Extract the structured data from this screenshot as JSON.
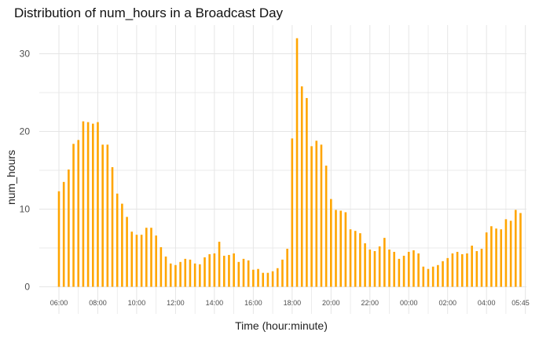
{
  "chart_data": {
    "type": "bar",
    "title": "Distribution of num_hours in a Broadcast Day",
    "xlabel": "Time (hour:minute)",
    "ylabel": "num_hours",
    "ylim": [
      0,
      33
    ],
    "yticks": [
      0,
      10,
      20,
      30
    ],
    "grid": true,
    "bar_color": "#FFA500",
    "grid_color": "#e5e5e5",
    "x_tick_labels": [
      "06:00",
      "08:00",
      "10:00",
      "12:00",
      "14:00",
      "16:00",
      "18:00",
      "20:00",
      "22:00",
      "00:00",
      "02:00",
      "04:00",
      "05:45"
    ],
    "categories": [
      "06:00",
      "06:15",
      "06:30",
      "06:45",
      "07:00",
      "07:15",
      "07:30",
      "07:45",
      "08:00",
      "08:15",
      "08:30",
      "08:45",
      "09:00",
      "09:15",
      "09:30",
      "09:45",
      "10:00",
      "10:15",
      "10:30",
      "10:45",
      "11:00",
      "11:15",
      "11:30",
      "11:45",
      "12:00",
      "12:15",
      "12:30",
      "12:45",
      "13:00",
      "13:15",
      "13:30",
      "13:45",
      "14:00",
      "14:15",
      "14:30",
      "14:45",
      "15:00",
      "15:15",
      "15:30",
      "15:45",
      "16:00",
      "16:15",
      "16:30",
      "16:45",
      "17:00",
      "17:15",
      "17:30",
      "17:45",
      "18:00",
      "18:15",
      "18:30",
      "18:45",
      "19:00",
      "19:15",
      "19:30",
      "19:45",
      "20:00",
      "20:15",
      "20:30",
      "20:45",
      "21:00",
      "21:15",
      "21:30",
      "21:45",
      "22:00",
      "22:15",
      "22:30",
      "22:45",
      "23:00",
      "23:15",
      "23:30",
      "23:45",
      "00:00",
      "00:15",
      "00:30",
      "00:45",
      "01:00",
      "01:15",
      "01:30",
      "01:45",
      "02:00",
      "02:15",
      "02:30",
      "02:45",
      "03:00",
      "03:15",
      "03:30",
      "03:45",
      "04:00",
      "04:15",
      "04:30",
      "04:45",
      "05:00",
      "05:15",
      "05:30",
      "05:45"
    ],
    "values": [
      12.3,
      13.5,
      15.1,
      18.4,
      18.9,
      21.3,
      21.2,
      21.0,
      21.2,
      18.3,
      18.3,
      15.4,
      12.0,
      10.7,
      9.0,
      7.1,
      6.7,
      6.7,
      7.6,
      7.6,
      6.6,
      5.1,
      3.9,
      3.0,
      2.8,
      3.2,
      3.6,
      3.5,
      3.0,
      2.9,
      3.8,
      4.2,
      4.3,
      5.8,
      4.0,
      4.1,
      4.3,
      3.2,
      3.6,
      3.4,
      2.2,
      2.3,
      1.8,
      1.8,
      2.0,
      2.4,
      3.5,
      4.9,
      19.1,
      32.0,
      25.8,
      24.3,
      18.1,
      18.8,
      18.3,
      15.6,
      11.3,
      9.9,
      9.8,
      9.6,
      7.4,
      7.2,
      6.9,
      5.6,
      4.8,
      4.6,
      5.2,
      6.3,
      4.8,
      4.5,
      3.6,
      4.0,
      4.5,
      4.7,
      4.3,
      2.6,
      2.3,
      2.6,
      2.8,
      3.3,
      3.7,
      4.3,
      4.5,
      4.2,
      4.3,
      5.3,
      4.6,
      4.9,
      7.0,
      7.8,
      7.5,
      7.4,
      8.7,
      8.5,
      9.9,
      9.5
    ]
  }
}
